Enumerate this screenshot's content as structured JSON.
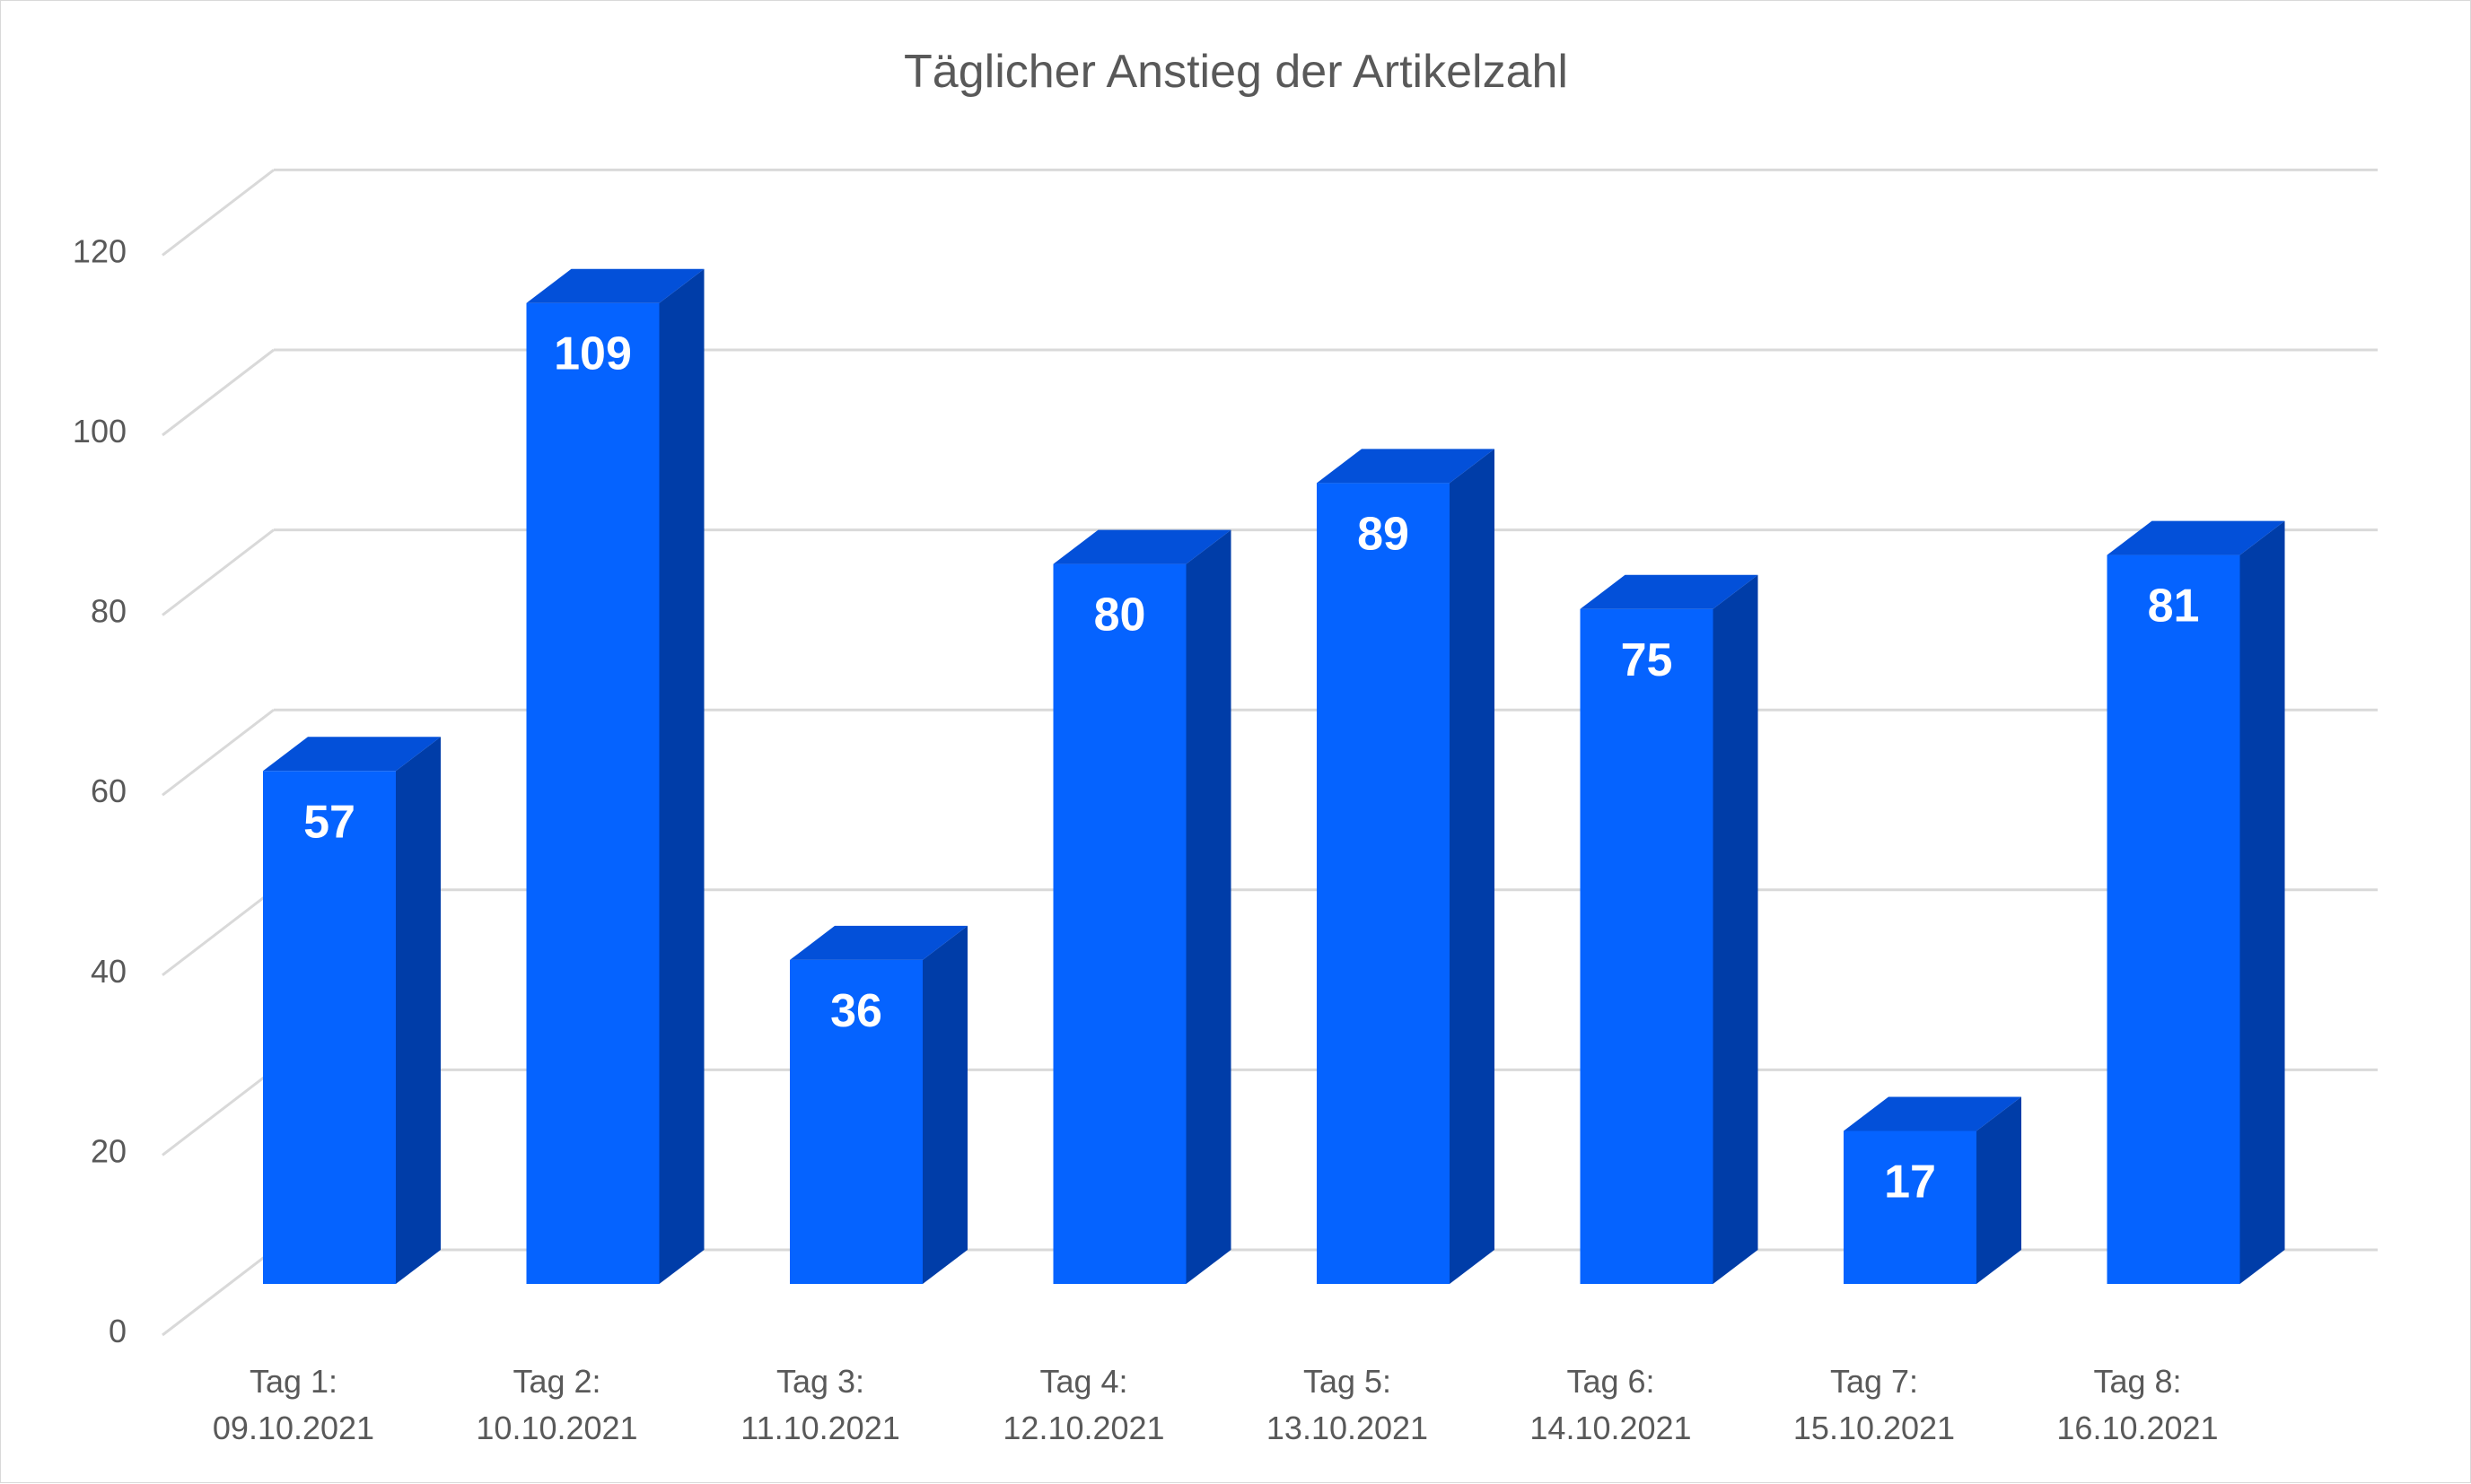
{
  "chart_data": {
    "type": "bar",
    "title": "Täglicher Anstieg der Artikelzahl",
    "xlabel": "",
    "ylabel": "",
    "categories": [
      [
        "Tag 1:",
        "09.10.2021"
      ],
      [
        "Tag 2:",
        "10.10.2021"
      ],
      [
        "Tag 3:",
        "11.10.2021"
      ],
      [
        "Tag 4:",
        "12.10.2021"
      ],
      [
        "Tag 5:",
        "13.10.2021"
      ],
      [
        "Tag 6:",
        "14.10.2021"
      ],
      [
        "Tag 7:",
        "15.10.2021"
      ],
      [
        "Tag 8:",
        "16.10.2021"
      ]
    ],
    "values": [
      57,
      109,
      36,
      80,
      89,
      75,
      17,
      81
    ],
    "ylim": [
      0,
      120
    ],
    "yticks": [
      "0",
      "20",
      "40",
      "60",
      "80",
      "100",
      "120"
    ],
    "grid": true,
    "legend": "none",
    "style": "3d-column",
    "colors": {
      "front": "#0563FF",
      "side": "#003DA8",
      "top": "#0350D9",
      "grid": "#D9D9D9",
      "text": "#595959"
    }
  }
}
